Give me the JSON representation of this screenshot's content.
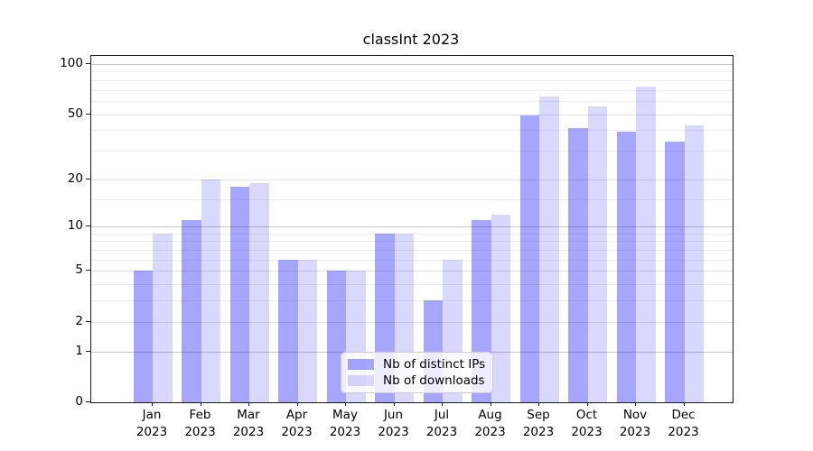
{
  "title": "classInt 2023",
  "chart_data": {
    "type": "bar",
    "title": "classInt 2023",
    "categories": [
      "Jan 2023",
      "Feb 2023",
      "Mar 2023",
      "Apr 2023",
      "May 2023",
      "Jun 2023",
      "Jul 2023",
      "Aug 2023",
      "Sep 2023",
      "Oct 2023",
      "Nov 2023",
      "Dec 2023"
    ],
    "series": [
      {
        "name": "Nb of distinct IPs",
        "base_color": "#0000ff",
        "alpha": 0.35,
        "blended_hex": "#a6a6f2",
        "values": [
          5,
          11,
          18,
          6,
          5,
          9,
          3,
          11,
          49,
          41,
          39,
          34
        ]
      },
      {
        "name": "Nb of downloads",
        "base_color": "#0000ff",
        "alpha": 0.15,
        "blended_hex": "#d9d9fa",
        "values": [
          9,
          20,
          19,
          6,
          5,
          9,
          6,
          12,
          64,
          56,
          73,
          43
        ]
      }
    ],
    "y_axis": {
      "scale": "log1p",
      "major_ticks": [
        0,
        1,
        2,
        5,
        10,
        20,
        50,
        100
      ],
      "minor_gridlines": [
        3,
        4,
        6,
        7,
        8,
        9,
        15,
        30,
        40,
        60,
        70,
        80,
        90
      ],
      "range": [
        0,
        100
      ]
    },
    "legend": {
      "position": "lower center",
      "items": [
        "Nb of distinct IPs",
        "Nb of downloads"
      ]
    },
    "grid": true
  },
  "colors": {
    "grid_decade": "#c9c9c9",
    "grid_major": "#e0e0e0",
    "grid_minor": "#eeeeee",
    "axis": "#1a1a1a",
    "text": "#000000",
    "background": "#ffffff"
  }
}
